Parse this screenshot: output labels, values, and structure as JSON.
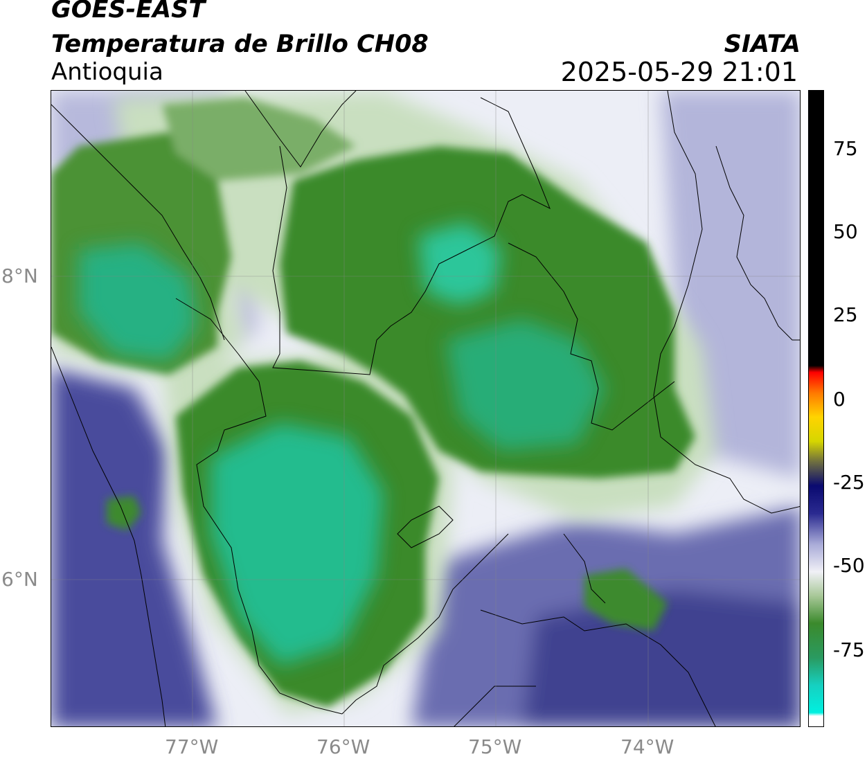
{
  "header": {
    "satellite": "GOES-EAST",
    "product": "Temperatura de Brillo CH08",
    "region": "Antioquia",
    "organization": "SIATA",
    "datetime": "2025-05-29 21:01"
  },
  "map": {
    "lon_range": [
      -77.94,
      -73.1
    ],
    "lat_range": [
      5.04,
      9.25
    ],
    "lon_ticks": [
      "77°W",
      "76°W",
      "75°W",
      "74°W"
    ],
    "lat_ticks": [
      "8°N",
      "6°N"
    ],
    "gridlines": true,
    "colors": {
      "cold_cloud": "#1fc4a0",
      "deep_green": "#3b8a2c",
      "mid_green": "#6aa65a",
      "pale_green": "#c9dfc0",
      "clear_white": "#f3f4f8",
      "lavender": "#b3b5da",
      "clear_blue": "#4a4c9c"
    }
  },
  "colorbar": {
    "ticks": [
      "75",
      "50",
      "25",
      "0",
      "-25",
      "-50",
      "-75"
    ],
    "range": [
      -95,
      90
    ]
  }
}
